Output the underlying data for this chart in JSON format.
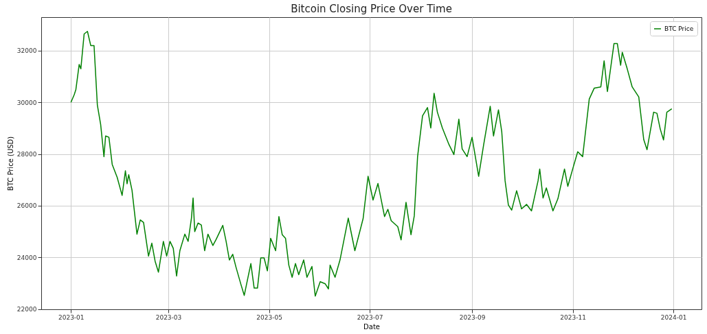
{
  "chart_data": {
    "type": "line",
    "title": "Bitcoin Closing Price Over Time",
    "xlabel": "Date",
    "ylabel": "BTC Price (USD)",
    "x": [
      "2023-01-01",
      "2023-01-03",
      "2023-01-04",
      "2023-01-06",
      "2023-01-07",
      "2023-01-09",
      "2023-01-11",
      "2023-01-13",
      "2023-01-15",
      "2023-01-17",
      "2023-01-19",
      "2023-01-21",
      "2023-01-22",
      "2023-01-24",
      "2023-01-26",
      "2023-01-29",
      "2023-02-01",
      "2023-02-03",
      "2023-02-04",
      "2023-02-05",
      "2023-02-07",
      "2023-02-10",
      "2023-02-12",
      "2023-02-14",
      "2023-02-17",
      "2023-02-19",
      "2023-02-21",
      "2023-02-23",
      "2023-02-26",
      "2023-02-28",
      "2023-03-02",
      "2023-03-04",
      "2023-03-06",
      "2023-03-08",
      "2023-03-11",
      "2023-03-13",
      "2023-03-15",
      "2023-03-16",
      "2023-03-17",
      "2023-03-19",
      "2023-03-21",
      "2023-03-23",
      "2023-03-25",
      "2023-03-28",
      "2023-03-30",
      "2023-04-03",
      "2023-04-05",
      "2023-04-07",
      "2023-04-09",
      "2023-04-11",
      "2023-04-14",
      "2023-04-16",
      "2023-04-18",
      "2023-04-20",
      "2023-04-22",
      "2023-04-24",
      "2023-04-26",
      "2023-04-28",
      "2023-04-30",
      "2023-05-02",
      "2023-05-05",
      "2023-05-07",
      "2023-05-09",
      "2023-05-11",
      "2023-05-13",
      "2023-05-15",
      "2023-05-17",
      "2023-05-19",
      "2023-05-22",
      "2023-05-24",
      "2023-05-27",
      "2023-05-29",
      "2023-06-01",
      "2023-06-04",
      "2023-06-06",
      "2023-06-07",
      "2023-06-10",
      "2023-06-13",
      "2023-06-18",
      "2023-06-22",
      "2023-06-27",
      "2023-06-30",
      "2023-07-03",
      "2023-07-06",
      "2023-07-10",
      "2023-07-12",
      "2023-07-14",
      "2023-07-18",
      "2023-07-20",
      "2023-07-23",
      "2023-07-26",
      "2023-07-28",
      "2023-07-30",
      "2023-08-02",
      "2023-08-05",
      "2023-08-07",
      "2023-08-09",
      "2023-08-11",
      "2023-08-14",
      "2023-08-18",
      "2023-08-21",
      "2023-08-24",
      "2023-08-26",
      "2023-08-29",
      "2023-09-01",
      "2023-09-05",
      "2023-09-08",
      "2023-09-12",
      "2023-09-14",
      "2023-09-17",
      "2023-09-19",
      "2023-09-21",
      "2023-09-23",
      "2023-09-25",
      "2023-09-28",
      "2023-10-01",
      "2023-10-04",
      "2023-10-07",
      "2023-10-11",
      "2023-10-12",
      "2023-10-14",
      "2023-10-16",
      "2023-10-20",
      "2023-10-23",
      "2023-10-27",
      "2023-10-29",
      "2023-11-01",
      "2023-11-04",
      "2023-11-07",
      "2023-11-11",
      "2023-11-14",
      "2023-11-18",
      "2023-11-20",
      "2023-11-22",
      "2023-11-26",
      "2023-11-28",
      "2023-11-30",
      "2023-12-01",
      "2023-12-04",
      "2023-12-07",
      "2023-12-11",
      "2023-12-14",
      "2023-12-16",
      "2023-12-20",
      "2023-12-22",
      "2023-12-24",
      "2023-12-26",
      "2023-12-28",
      "2023-12-31"
    ],
    "series": [
      {
        "name": "BTC Price",
        "color": "#008000",
        "values": [
          30000,
          30300,
          30500,
          31470,
          31300,
          32650,
          32750,
          32200,
          32200,
          29900,
          29150,
          27900,
          28700,
          28650,
          27600,
          27100,
          26400,
          27350,
          26850,
          27200,
          26600,
          24900,
          25450,
          25350,
          24050,
          24550,
          23850,
          23430,
          24620,
          24050,
          24620,
          24350,
          23280,
          24260,
          24900,
          24620,
          25520,
          26300,
          25000,
          25330,
          25250,
          24260,
          24900,
          24460,
          24700,
          25240,
          24620,
          23900,
          24120,
          23620,
          22950,
          22530,
          23150,
          23760,
          22810,
          22810,
          23980,
          23980,
          23480,
          24740,
          24260,
          25580,
          24880,
          24740,
          23700,
          23230,
          23760,
          23330,
          23900,
          23230,
          23650,
          22500,
          23060,
          22980,
          22780,
          23700,
          23230,
          23900,
          25520,
          24260,
          25500,
          27140,
          26220,
          26860,
          25580,
          25860,
          25420,
          25190,
          24680,
          26130,
          24880,
          25610,
          27900,
          29480,
          29800,
          29010,
          30350,
          29620,
          29010,
          28370,
          27980,
          29350,
          28200,
          27900,
          28650,
          27140,
          28350,
          29850,
          28700,
          29710,
          28860,
          26970,
          26030,
          25830,
          26580,
          25880,
          26050,
          25800,
          26970,
          27420,
          26300,
          26690,
          25800,
          26270,
          27420,
          26750,
          27430,
          28090,
          27900,
          30130,
          30550,
          30600,
          31610,
          30420,
          32280,
          32280,
          31440,
          31940,
          31300,
          30600,
          30210,
          28560,
          28170,
          29620,
          29580,
          28970,
          28550,
          29620,
          29750
        ]
      }
    ],
    "xlim": [
      "2022-12-14",
      "2024-01-18"
    ],
    "xticks": [
      "2023-01",
      "2023-03",
      "2023-05",
      "2023-07",
      "2023-09",
      "2023-11",
      "2024-01"
    ],
    "ylim": [
      21990,
      33300
    ],
    "yticks": [
      22000,
      24000,
      26000,
      28000,
      30000,
      32000
    ],
    "grid": true,
    "legend": "top right",
    "line_style": "solid",
    "marker": "none"
  }
}
